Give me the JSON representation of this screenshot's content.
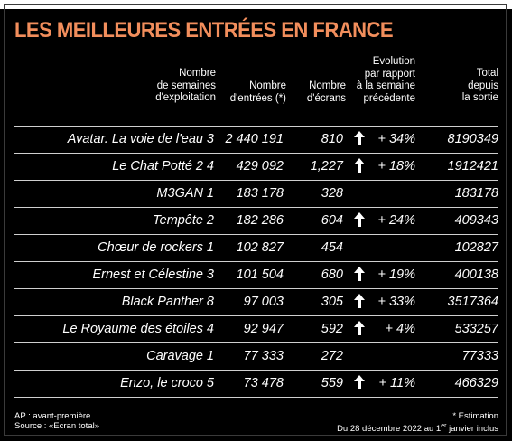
{
  "title": "LES MEILLEURES ENTRÉES EN FRANCE",
  "colors": {
    "title": "#f28e5c",
    "background": "#000000",
    "text": "#ffffff"
  },
  "headers": {
    "weeks": "Nombre\nde semaines\nd'exploitation",
    "entries": "Nombre\nd'entrées (*)",
    "screens": "Nombre\nd'écrans",
    "evolution": "Evolution\npar rapport\nà la semaine\nprécédente",
    "total": "Total\ndepuis\nla sortie"
  },
  "rows": [
    {
      "title": "Avatar. La voie de l'eau",
      "weeks": "3",
      "entries": "2 440 191",
      "screens": "810",
      "arrow": true,
      "evolution": "+ 34%",
      "total": "8190349"
    },
    {
      "title": "Le Chat Potté 2",
      "weeks": "4",
      "entries": "429 092",
      "screens": "1,227",
      "arrow": true,
      "evolution": "+ 18%",
      "total": "1912421"
    },
    {
      "title": "M3GAN",
      "weeks": "1",
      "entries": "183 178",
      "screens": "328",
      "arrow": false,
      "evolution": "",
      "total": "183178"
    },
    {
      "title": "Tempête",
      "weeks": "2",
      "entries": "182 286",
      "screens": "604",
      "arrow": true,
      "evolution": "+ 24%",
      "total": "409343"
    },
    {
      "title": "Chœur de rockers",
      "weeks": "1",
      "entries": "102 827",
      "screens": "454",
      "arrow": false,
      "evolution": "",
      "total": "102827"
    },
    {
      "title": "Ernest et Célestine",
      "weeks": "3",
      "entries": "101 504",
      "screens": "680",
      "arrow": true,
      "evolution": "+ 19%",
      "total": "400138"
    },
    {
      "title": "Black Panther",
      "weeks": "8",
      "entries": "97 003",
      "screens": "305",
      "arrow": true,
      "evolution": "+ 33%",
      "total": "3517364"
    },
    {
      "title": "Le Royaume des étoiles",
      "weeks": "4",
      "entries": "92 947",
      "screens": "592",
      "arrow": true,
      "evolution": "+ 4%",
      "total": "533257"
    },
    {
      "title": "Caravage",
      "weeks": "1",
      "entries": "77 333",
      "screens": "272",
      "arrow": false,
      "evolution": "",
      "total": "77333"
    },
    {
      "title": "Enzo, le croco",
      "weeks": "5",
      "entries": "73 478",
      "screens": "559",
      "arrow": true,
      "evolution": "+ 11%",
      "total": "466329"
    }
  ],
  "footer": {
    "left_line1": "AP : avant-première",
    "left_line2": "Source : «Ecran total»",
    "right_line1": "* Estimation",
    "right_line2_before": "Du 28 décembre 2022 au 1",
    "right_line2_sup": "er",
    "right_line2_after": " janvier inclus"
  }
}
